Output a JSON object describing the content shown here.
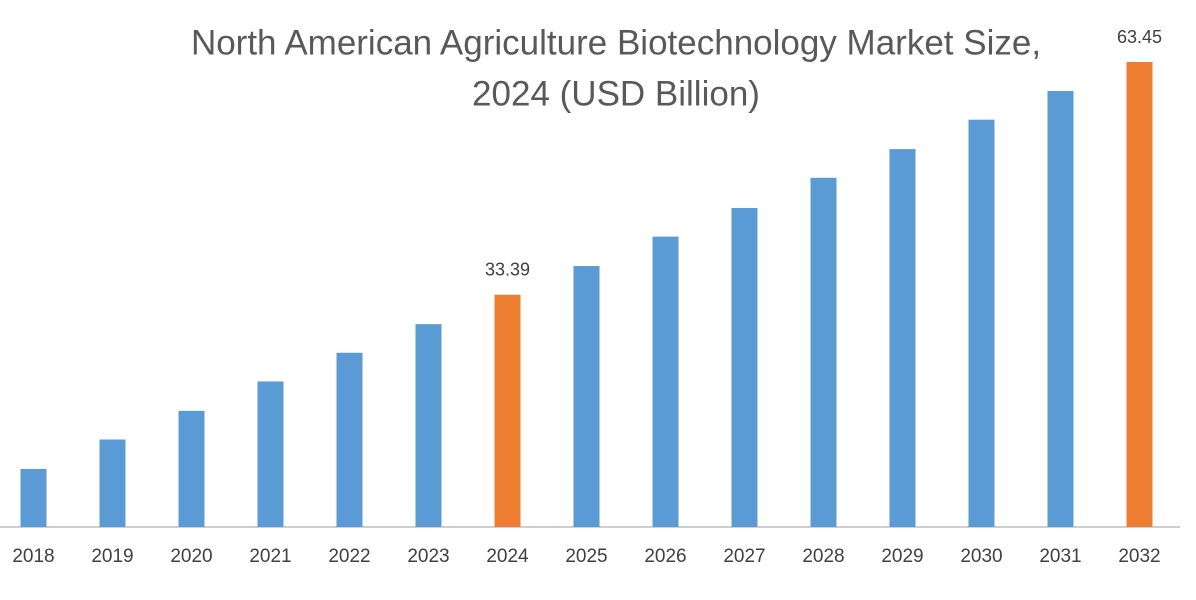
{
  "chart_data": {
    "type": "bar",
    "title": [
      "North American Agriculture Biotechnology Market Size,",
      "2024 (USD Billion)"
    ],
    "categories": [
      "2018",
      "2019",
      "2020",
      "2021",
      "2022",
      "2023",
      "2024",
      "2025",
      "2026",
      "2027",
      "2028",
      "2029",
      "2030",
      "2031",
      "2032"
    ],
    "values": [
      10.9,
      14.7,
      18.4,
      22.2,
      25.9,
      29.6,
      33.39,
      37.1,
      40.9,
      44.6,
      48.5,
      52.2,
      56.0,
      59.7,
      63.45
    ],
    "value_labels": [
      null,
      null,
      null,
      null,
      null,
      null,
      "33.39",
      null,
      null,
      null,
      null,
      null,
      null,
      null,
      "63.45"
    ],
    "colors": [
      "#5b9bd5",
      "#5b9bd5",
      "#5b9bd5",
      "#5b9bd5",
      "#5b9bd5",
      "#5b9bd5",
      "#ed7d31",
      "#5b9bd5",
      "#5b9bd5",
      "#5b9bd5",
      "#5b9bd5",
      "#5b9bd5",
      "#5b9bd5",
      "#5b9bd5",
      "#ed7d31"
    ],
    "ylim": [
      3.4,
      65
    ]
  }
}
